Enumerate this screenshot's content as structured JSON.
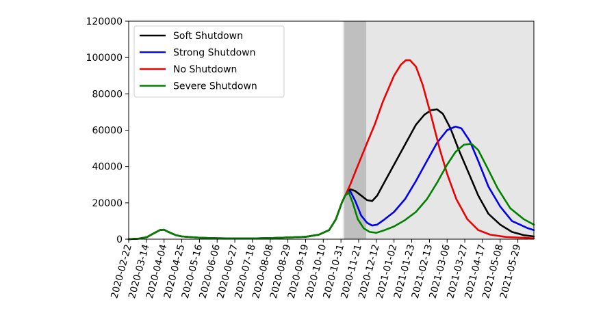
{
  "chart_data": {
    "type": "line",
    "title": "",
    "xlabel": "",
    "ylabel": "",
    "ylim": [
      0,
      120000
    ],
    "yticks": [
      0,
      20000,
      40000,
      60000,
      80000,
      100000,
      120000
    ],
    "yticklabels": [
      "0",
      "20000",
      "40000",
      "60000",
      "80000",
      "100000",
      "120000"
    ],
    "xlim": [
      "2020-02-22",
      "2021-06-17"
    ],
    "xticks": [
      "2020-02-22",
      "2020-03-14",
      "2020-04-04",
      "2020-04-25",
      "2020-05-16",
      "2020-06-06",
      "2020-06-27",
      "2020-07-18",
      "2020-08-08",
      "2020-08-29",
      "2020-09-19",
      "2020-10-10",
      "2020-10-31",
      "2020-11-21",
      "2020-12-12",
      "2021-01-02",
      "2021-01-23",
      "2021-02-13",
      "2021-03-06",
      "2021-03-27",
      "2021-04-17",
      "2021-05-08",
      "2021-05-29"
    ],
    "grid": false,
    "legend_position": "top-left",
    "shaded_regions": [
      {
        "start": "2020-11-02",
        "end": "2021-06-17",
        "color": "#e6e6e6"
      },
      {
        "start": "2020-11-04",
        "end": "2020-11-30",
        "color": "#bfbfbf"
      }
    ],
    "series": [
      {
        "name": "Soft Shutdown",
        "color": "#000000",
        "points": [
          [
            "2020-02-22",
            0
          ],
          [
            "2020-03-05",
            300
          ],
          [
            "2020-03-14",
            1000
          ],
          [
            "2020-03-24",
            3500
          ],
          [
            "2020-03-30",
            5000
          ],
          [
            "2020-04-04",
            5200
          ],
          [
            "2020-04-09",
            4000
          ],
          [
            "2020-04-18",
            2200
          ],
          [
            "2020-04-25",
            1500
          ],
          [
            "2020-05-16",
            800
          ],
          [
            "2020-06-06",
            500
          ],
          [
            "2020-06-27",
            400
          ],
          [
            "2020-07-18",
            400
          ],
          [
            "2020-08-08",
            600
          ],
          [
            "2020-08-29",
            900
          ],
          [
            "2020-09-19",
            1300
          ],
          [
            "2020-10-05",
            2500
          ],
          [
            "2020-10-17",
            5000
          ],
          [
            "2020-10-25",
            11000
          ],
          [
            "2020-11-01",
            20000
          ],
          [
            "2020-11-05",
            24000
          ],
          [
            "2020-11-11",
            27500
          ],
          [
            "2020-11-17",
            26500
          ],
          [
            "2020-11-24",
            24000
          ],
          [
            "2020-12-01",
            21500
          ],
          [
            "2020-12-07",
            21000
          ],
          [
            "2020-12-13",
            24000
          ],
          [
            "2020-12-20",
            30000
          ],
          [
            "2021-01-02",
            41000
          ],
          [
            "2021-01-15",
            52000
          ],
          [
            "2021-01-28",
            63000
          ],
          [
            "2021-02-07",
            68500
          ],
          [
            "2021-02-15",
            71000
          ],
          [
            "2021-02-22",
            71500
          ],
          [
            "2021-03-01",
            69000
          ],
          [
            "2021-03-10",
            61000
          ],
          [
            "2021-03-20",
            49000
          ],
          [
            "2021-04-01",
            36000
          ],
          [
            "2021-04-12",
            24000
          ],
          [
            "2021-04-24",
            14000
          ],
          [
            "2021-05-08",
            8000
          ],
          [
            "2021-05-22",
            4000
          ],
          [
            "2021-06-05",
            2200
          ],
          [
            "2021-06-17",
            1500
          ]
        ]
      },
      {
        "name": "Strong Shutdown",
        "color": "#0000ee",
        "points": [
          [
            "2020-02-22",
            0
          ],
          [
            "2020-03-05",
            300
          ],
          [
            "2020-03-14",
            1000
          ],
          [
            "2020-03-24",
            3500
          ],
          [
            "2020-03-30",
            5000
          ],
          [
            "2020-04-04",
            5200
          ],
          [
            "2020-04-09",
            4000
          ],
          [
            "2020-04-18",
            2200
          ],
          [
            "2020-04-25",
            1500
          ],
          [
            "2020-05-16",
            800
          ],
          [
            "2020-06-06",
            500
          ],
          [
            "2020-06-27",
            400
          ],
          [
            "2020-07-18",
            400
          ],
          [
            "2020-08-08",
            600
          ],
          [
            "2020-08-29",
            900
          ],
          [
            "2020-09-19",
            1300
          ],
          [
            "2020-10-05",
            2500
          ],
          [
            "2020-10-17",
            5000
          ],
          [
            "2020-10-25",
            11000
          ],
          [
            "2020-11-01",
            20000
          ],
          [
            "2020-11-05",
            24000
          ],
          [
            "2020-11-11",
            26500
          ],
          [
            "2020-11-17",
            21000
          ],
          [
            "2020-11-24",
            13000
          ],
          [
            "2020-12-01",
            9000
          ],
          [
            "2020-12-07",
            7500
          ],
          [
            "2020-12-13",
            8000
          ],
          [
            "2020-12-22",
            11000
          ],
          [
            "2021-01-02",
            15000
          ],
          [
            "2021-01-15",
            22000
          ],
          [
            "2021-01-28",
            32000
          ],
          [
            "2021-02-10",
            43000
          ],
          [
            "2021-02-22",
            53000
          ],
          [
            "2021-03-06",
            60000
          ],
          [
            "2021-03-16",
            62000
          ],
          [
            "2021-03-23",
            61000
          ],
          [
            "2021-04-02",
            54000
          ],
          [
            "2021-04-12",
            43000
          ],
          [
            "2021-04-24",
            29000
          ],
          [
            "2021-05-08",
            18000
          ],
          [
            "2021-05-22",
            10000
          ],
          [
            "2021-06-10",
            6000
          ],
          [
            "2021-06-17",
            5000
          ]
        ]
      },
      {
        "name": "No Shutdown",
        "color": "#ee0000",
        "points": [
          [
            "2020-02-22",
            0
          ],
          [
            "2020-03-05",
            300
          ],
          [
            "2020-03-14",
            1000
          ],
          [
            "2020-03-24",
            3500
          ],
          [
            "2020-03-30",
            5000
          ],
          [
            "2020-04-04",
            5200
          ],
          [
            "2020-04-09",
            4000
          ],
          [
            "2020-04-18",
            2200
          ],
          [
            "2020-04-25",
            1500
          ],
          [
            "2020-05-16",
            800
          ],
          [
            "2020-06-06",
            500
          ],
          [
            "2020-06-27",
            400
          ],
          [
            "2020-07-18",
            400
          ],
          [
            "2020-08-08",
            600
          ],
          [
            "2020-08-29",
            900
          ],
          [
            "2020-09-19",
            1300
          ],
          [
            "2020-10-05",
            2500
          ],
          [
            "2020-10-17",
            5000
          ],
          [
            "2020-10-25",
            11000
          ],
          [
            "2020-11-01",
            20000
          ],
          [
            "2020-11-05",
            24000
          ],
          [
            "2020-11-11",
            30000
          ],
          [
            "2020-11-17",
            37000
          ],
          [
            "2020-11-24",
            45000
          ],
          [
            "2020-12-01",
            53000
          ],
          [
            "2020-12-10",
            63000
          ],
          [
            "2020-12-20",
            76000
          ],
          [
            "2021-01-02",
            90000
          ],
          [
            "2021-01-10",
            96000
          ],
          [
            "2021-01-16",
            98500
          ],
          [
            "2021-01-21",
            98500
          ],
          [
            "2021-01-28",
            95000
          ],
          [
            "2021-02-05",
            85000
          ],
          [
            "2021-02-15",
            68000
          ],
          [
            "2021-02-25",
            50000
          ],
          [
            "2021-03-06",
            36000
          ],
          [
            "2021-03-17",
            22000
          ],
          [
            "2021-03-30",
            11000
          ],
          [
            "2021-04-12",
            5000
          ],
          [
            "2021-04-26",
            2500
          ],
          [
            "2021-05-15",
            1200
          ],
          [
            "2021-06-17",
            500
          ]
        ]
      },
      {
        "name": "Severe Shutdown",
        "color": "#008000",
        "points": [
          [
            "2020-02-22",
            0
          ],
          [
            "2020-03-05",
            300
          ],
          [
            "2020-03-14",
            1000
          ],
          [
            "2020-03-24",
            3500
          ],
          [
            "2020-03-30",
            5000
          ],
          [
            "2020-04-04",
            5200
          ],
          [
            "2020-04-09",
            4000
          ],
          [
            "2020-04-18",
            2200
          ],
          [
            "2020-04-25",
            1500
          ],
          [
            "2020-05-16",
            800
          ],
          [
            "2020-06-06",
            500
          ],
          [
            "2020-06-27",
            400
          ],
          [
            "2020-07-18",
            400
          ],
          [
            "2020-08-08",
            600
          ],
          [
            "2020-08-29",
            900
          ],
          [
            "2020-09-19",
            1300
          ],
          [
            "2020-10-05",
            2500
          ],
          [
            "2020-10-17",
            5000
          ],
          [
            "2020-10-25",
            11000
          ],
          [
            "2020-11-01",
            20000
          ],
          [
            "2020-11-05",
            24000
          ],
          [
            "2020-11-09",
            26000
          ],
          [
            "2020-11-14",
            20000
          ],
          [
            "2020-11-20",
            11000
          ],
          [
            "2020-11-27",
            6000
          ],
          [
            "2020-12-04",
            4000
          ],
          [
            "2020-12-12",
            3500
          ],
          [
            "2020-12-22",
            5000
          ],
          [
            "2021-01-02",
            7000
          ],
          [
            "2021-01-15",
            10500
          ],
          [
            "2021-01-28",
            15000
          ],
          [
            "2021-02-10",
            22000
          ],
          [
            "2021-02-22",
            31000
          ],
          [
            "2021-03-06",
            41000
          ],
          [
            "2021-03-16",
            48000
          ],
          [
            "2021-03-26",
            52000
          ],
          [
            "2021-04-04",
            52500
          ],
          [
            "2021-04-12",
            49000
          ],
          [
            "2021-04-22",
            40000
          ],
          [
            "2021-05-05",
            28000
          ],
          [
            "2021-05-20",
            17000
          ],
          [
            "2021-06-05",
            11000
          ],
          [
            "2021-06-17",
            8000
          ]
        ]
      }
    ]
  }
}
